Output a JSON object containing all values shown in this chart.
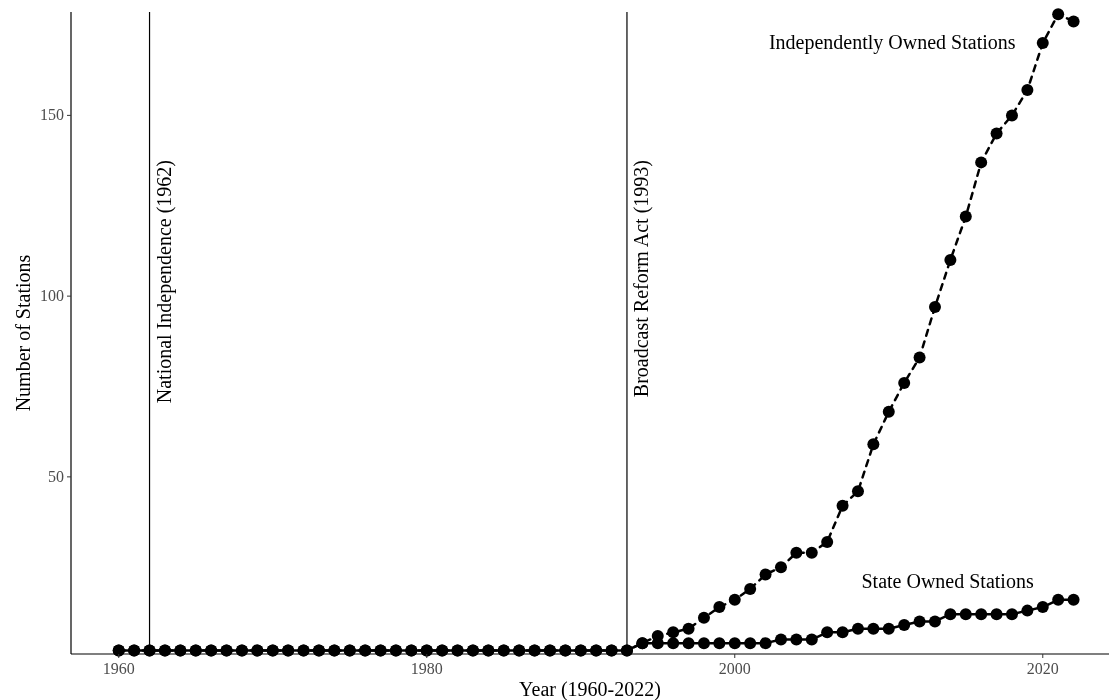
{
  "chart_data": {
    "type": "line",
    "xlabel": "Year (1960-2022)",
    "ylabel": "Number of Stations",
    "x": [
      1960,
      1961,
      1962,
      1963,
      1964,
      1965,
      1966,
      1967,
      1968,
      1969,
      1970,
      1971,
      1972,
      1973,
      1974,
      1975,
      1976,
      1977,
      1978,
      1979,
      1980,
      1981,
      1982,
      1983,
      1984,
      1985,
      1986,
      1987,
      1988,
      1989,
      1990,
      1991,
      1992,
      1993,
      1994,
      1995,
      1996,
      1997,
      1998,
      1999,
      2000,
      2001,
      2002,
      2003,
      2004,
      2005,
      2006,
      2007,
      2008,
      2009,
      2010,
      2011,
      2012,
      2013,
      2014,
      2015,
      2016,
      2017,
      2018,
      2019,
      2020,
      2021,
      2022
    ],
    "series": [
      {
        "name": "Independently Owned Stations",
        "color": "#000000",
        "line_style": "dashed",
        "values": [
          2,
          2,
          2,
          2,
          2,
          2,
          2,
          2,
          2,
          2,
          2,
          2,
          2,
          2,
          2,
          2,
          2,
          2,
          2,
          2,
          2,
          2,
          2,
          2,
          2,
          2,
          2,
          2,
          2,
          2,
          2,
          2,
          2,
          2,
          4,
          6,
          7,
          8,
          11,
          14,
          16,
          19,
          23,
          25,
          29,
          29,
          32,
          42,
          46,
          59,
          68,
          76,
          83,
          97,
          110,
          122,
          137,
          145,
          150,
          157,
          170,
          178,
          176
        ]
      },
      {
        "name": "State Owned Stations",
        "color": "#000000",
        "line_style": "solid",
        "values": [
          2,
          2,
          2,
          2,
          2,
          2,
          2,
          2,
          2,
          2,
          2,
          2,
          2,
          2,
          2,
          2,
          2,
          2,
          2,
          2,
          2,
          2,
          2,
          2,
          2,
          2,
          2,
          2,
          2,
          2,
          2,
          2,
          2,
          2,
          4,
          4,
          4,
          4,
          4,
          4,
          4,
          4,
          4,
          5,
          5,
          5,
          7,
          7,
          8,
          8,
          8,
          9,
          10,
          10,
          12,
          12,
          12,
          12,
          12,
          13,
          14,
          16,
          16
        ]
      }
    ],
    "xlim": [
      1956.9,
      2024.3
    ],
    "ylim": [
      1,
      178.6
    ],
    "xticks": [
      1960,
      1980,
      2000,
      2020
    ],
    "yticks": [
      50,
      100,
      150
    ],
    "grid": false,
    "marker": "circle",
    "ref_lines": [
      {
        "axis": "x",
        "value": 1962,
        "label": "National Independence (1962)",
        "color": "#000000"
      },
      {
        "axis": "x",
        "value": 1993,
        "label": "Broadcast Reform Act (1993)",
        "color": "#000000"
      }
    ]
  }
}
